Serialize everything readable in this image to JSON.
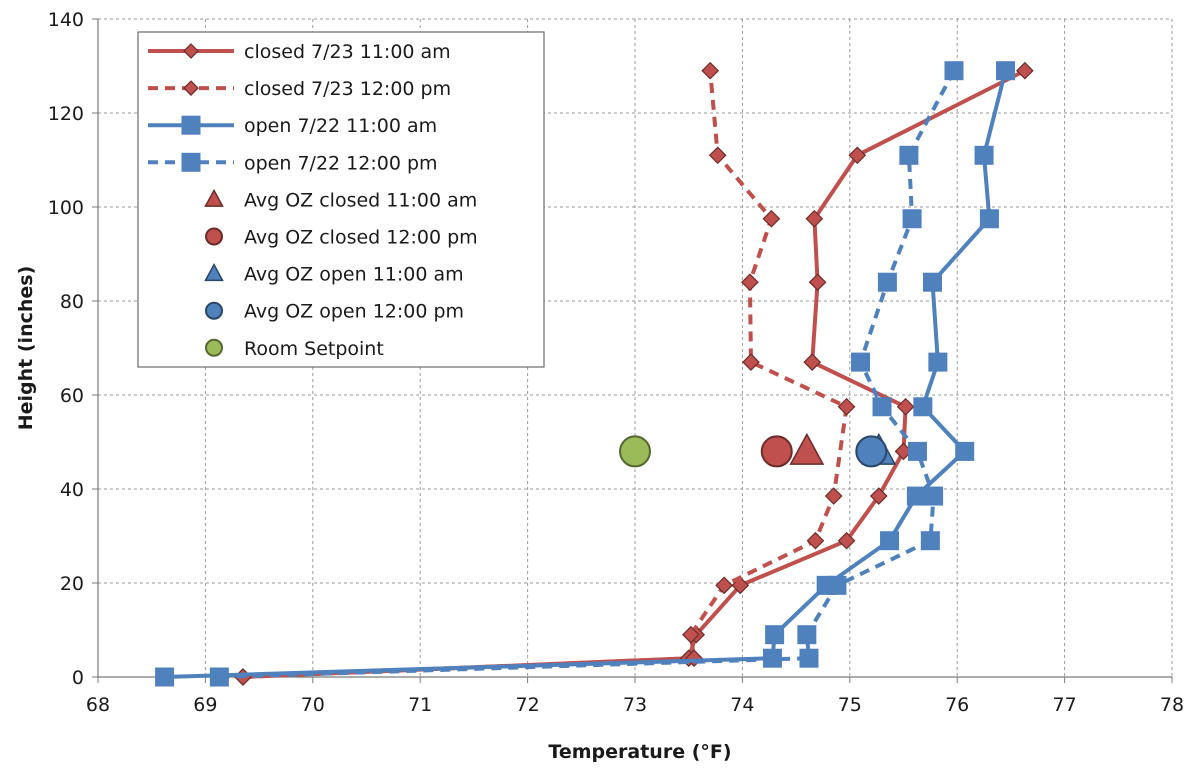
{
  "chart_data": {
    "type": "scatter",
    "title": "",
    "xlabel": "Temperature (°F)",
    "ylabel": "Height (inches)",
    "xlim": [
      68,
      78
    ],
    "ylim": [
      0,
      140
    ],
    "x_ticks": [
      68,
      69,
      70,
      71,
      72,
      73,
      74,
      75,
      76,
      77,
      78
    ],
    "y_ticks": [
      0,
      20,
      40,
      60,
      80,
      100,
      120,
      140
    ],
    "grid": true,
    "legend_position": "top-left",
    "series": [
      {
        "name": "closed 7/23 11:00 am",
        "color": "#c0504d",
        "marker": "diamond",
        "line": "solid",
        "points": [
          [
            69.35,
            0
          ],
          [
            73.5,
            4
          ],
          [
            73.57,
            9
          ],
          [
            73.98,
            19.5
          ],
          [
            74.97,
            29
          ],
          [
            75.27,
            38.5
          ],
          [
            75.5,
            48
          ],
          [
            75.52,
            57.5
          ],
          [
            74.65,
            67
          ],
          [
            74.7,
            84
          ],
          [
            74.67,
            97.5
          ],
          [
            75.07,
            111
          ],
          [
            76.63,
            129
          ]
        ]
      },
      {
        "name": "closed 7/23 12:00 pm",
        "color": "#c0504d",
        "marker": "diamond",
        "line": "dashed",
        "points": [
          [
            69.35,
            0
          ],
          [
            73.55,
            4
          ],
          [
            73.52,
            9
          ],
          [
            73.83,
            19.5
          ],
          [
            74.68,
            29
          ],
          [
            74.85,
            38.5
          ],
          [
            74.97,
            57.5
          ],
          [
            74.08,
            67
          ],
          [
            74.07,
            84
          ],
          [
            74.27,
            97.5
          ],
          [
            73.77,
            111
          ],
          [
            73.7,
            129
          ]
        ]
      },
      {
        "name": "open 7/22 11:00 am",
        "color": "#4f81bd",
        "marker": "square",
        "line": "solid",
        "points": [
          [
            68.62,
            0
          ],
          [
            74.28,
            4
          ],
          [
            74.3,
            9
          ],
          [
            74.78,
            19.5
          ],
          [
            75.37,
            29
          ],
          [
            75.62,
            38.5
          ],
          [
            76.07,
            48
          ],
          [
            75.68,
            57.5
          ],
          [
            75.82,
            67
          ],
          [
            75.77,
            84
          ],
          [
            76.3,
            97.5
          ],
          [
            76.25,
            111
          ],
          [
            76.45,
            129
          ]
        ]
      },
      {
        "name": "open 7/22 12:00 pm",
        "color": "#4f81bd",
        "marker": "square",
        "line": "dashed",
        "points": [
          [
            69.13,
            0
          ],
          [
            74.62,
            4
          ],
          [
            74.6,
            9
          ],
          [
            74.88,
            19.5
          ],
          [
            75.75,
            29
          ],
          [
            75.78,
            38.5
          ],
          [
            75.63,
            48
          ],
          [
            75.3,
            57.5
          ],
          [
            75.1,
            67
          ],
          [
            75.35,
            84
          ],
          [
            75.58,
            97.5
          ],
          [
            75.55,
            111
          ],
          [
            75.97,
            129
          ]
        ]
      },
      {
        "name": "Avg OZ closed 11:00 am",
        "color": "#c0504d",
        "marker": "triangle",
        "line": "none",
        "points": [
          [
            74.6,
            48
          ]
        ]
      },
      {
        "name": "Avg OZ closed 12:00 pm",
        "color": "#c0504d",
        "marker": "circle",
        "line": "none",
        "points": [
          [
            74.32,
            48
          ]
        ]
      },
      {
        "name": "Avg OZ open 11:00 am",
        "color": "#4f81bd",
        "marker": "triangle",
        "line": "none",
        "points": [
          [
            75.27,
            48
          ]
        ]
      },
      {
        "name": "Avg OZ open 12:00 pm",
        "color": "#4f81bd",
        "marker": "circle",
        "line": "none",
        "points": [
          [
            75.2,
            48
          ]
        ]
      },
      {
        "name": "Room Setpoint",
        "color": "#9bbb59",
        "marker": "circle",
        "line": "none",
        "points": [
          [
            73.0,
            48
          ]
        ]
      }
    ]
  }
}
